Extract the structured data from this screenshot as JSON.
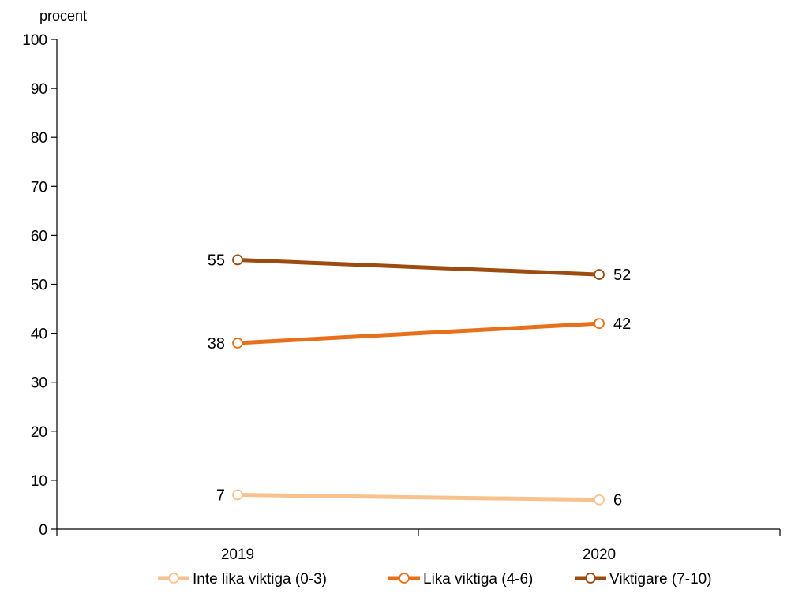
{
  "chart_data": {
    "type": "line",
    "ylabel": "procent",
    "ylim": [
      0,
      100
    ],
    "yticks": [
      0,
      10,
      20,
      30,
      40,
      50,
      60,
      70,
      80,
      90,
      100
    ],
    "categories": [
      "2019",
      "2020"
    ],
    "grid": false,
    "legend_position": "bottom",
    "series": [
      {
        "name": "Inte lika viktiga (0-3)",
        "color": "#F8C28F",
        "values": [
          7,
          6
        ]
      },
      {
        "name": "Lika viktiga (4-6)",
        "color": "#E8701A",
        "values": [
          38,
          42
        ]
      },
      {
        "name": "Viktigare (7-10)",
        "color": "#9C4C10",
        "values": [
          55,
          52
        ]
      }
    ]
  }
}
